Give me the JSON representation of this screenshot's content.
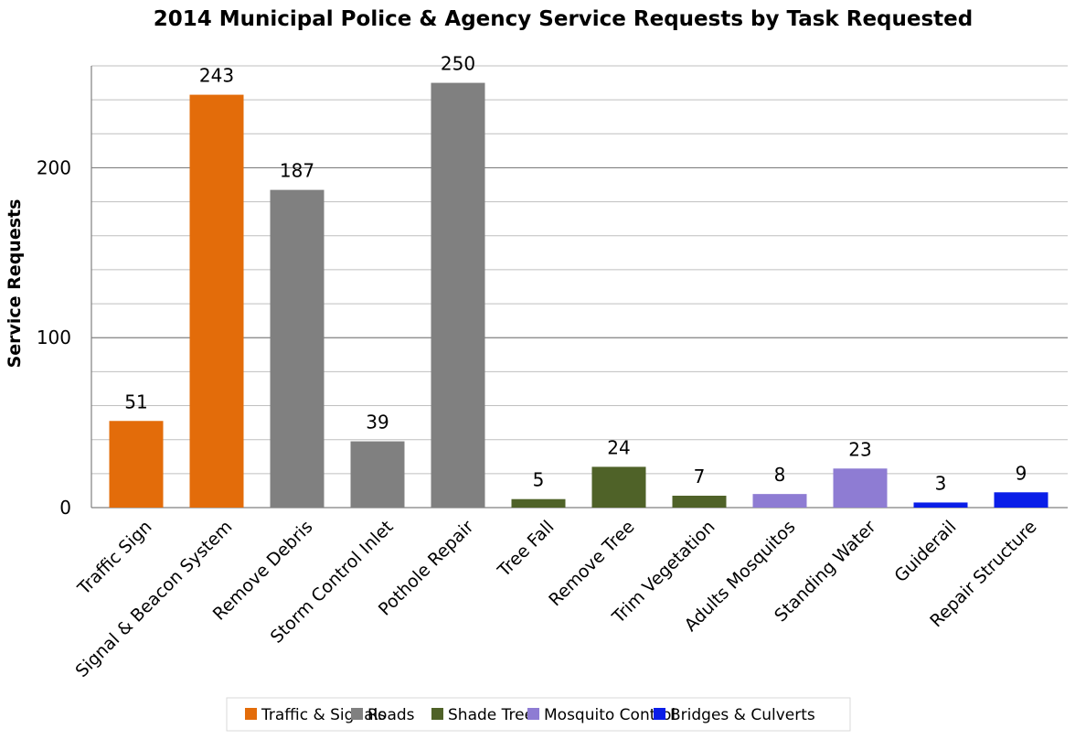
{
  "chart_data": {
    "type": "bar",
    "title": "2014 Municipal Police & Agency Service Requests by Task Requested",
    "xlabel": "",
    "ylabel": "Service Requests",
    "ylim": [
      0,
      250
    ],
    "yticks": [
      0,
      100,
      200
    ],
    "grid": true,
    "legend_position": "bottom",
    "categories": [
      "Traffic Sign",
      "Signal & Beacon System",
      "Remove Debris",
      "Storm Control Inlet",
      "Pothole Repair",
      "Tree Fall",
      "Remove Tree",
      "Trim Vegetation",
      "Adults Mosquitos",
      "Standing Water",
      "Guiderail",
      "Repair Structure"
    ],
    "values": [
      51,
      243,
      187,
      39,
      250,
      5,
      24,
      7,
      8,
      23,
      3,
      9
    ],
    "groups": [
      "Traffic & Signals",
      "Traffic & Signals",
      "Roads",
      "Roads",
      "Roads",
      "Shade Tree",
      "Shade Tree",
      "Shade Tree",
      "Mosquito Control",
      "Mosquito Control",
      "Bridges & Culverts",
      "Bridges & Culverts"
    ],
    "legend": [
      {
        "name": "Traffic & Signals",
        "color": "#e36c0a"
      },
      {
        "name": "Roads",
        "color": "#808080"
      },
      {
        "name": "Shade Tree",
        "color": "#4f6228"
      },
      {
        "name": "Mosquito Control",
        "color": "#8e7cd3"
      },
      {
        "name": "Bridges & Culverts",
        "color": "#0a1ee8"
      }
    ]
  }
}
